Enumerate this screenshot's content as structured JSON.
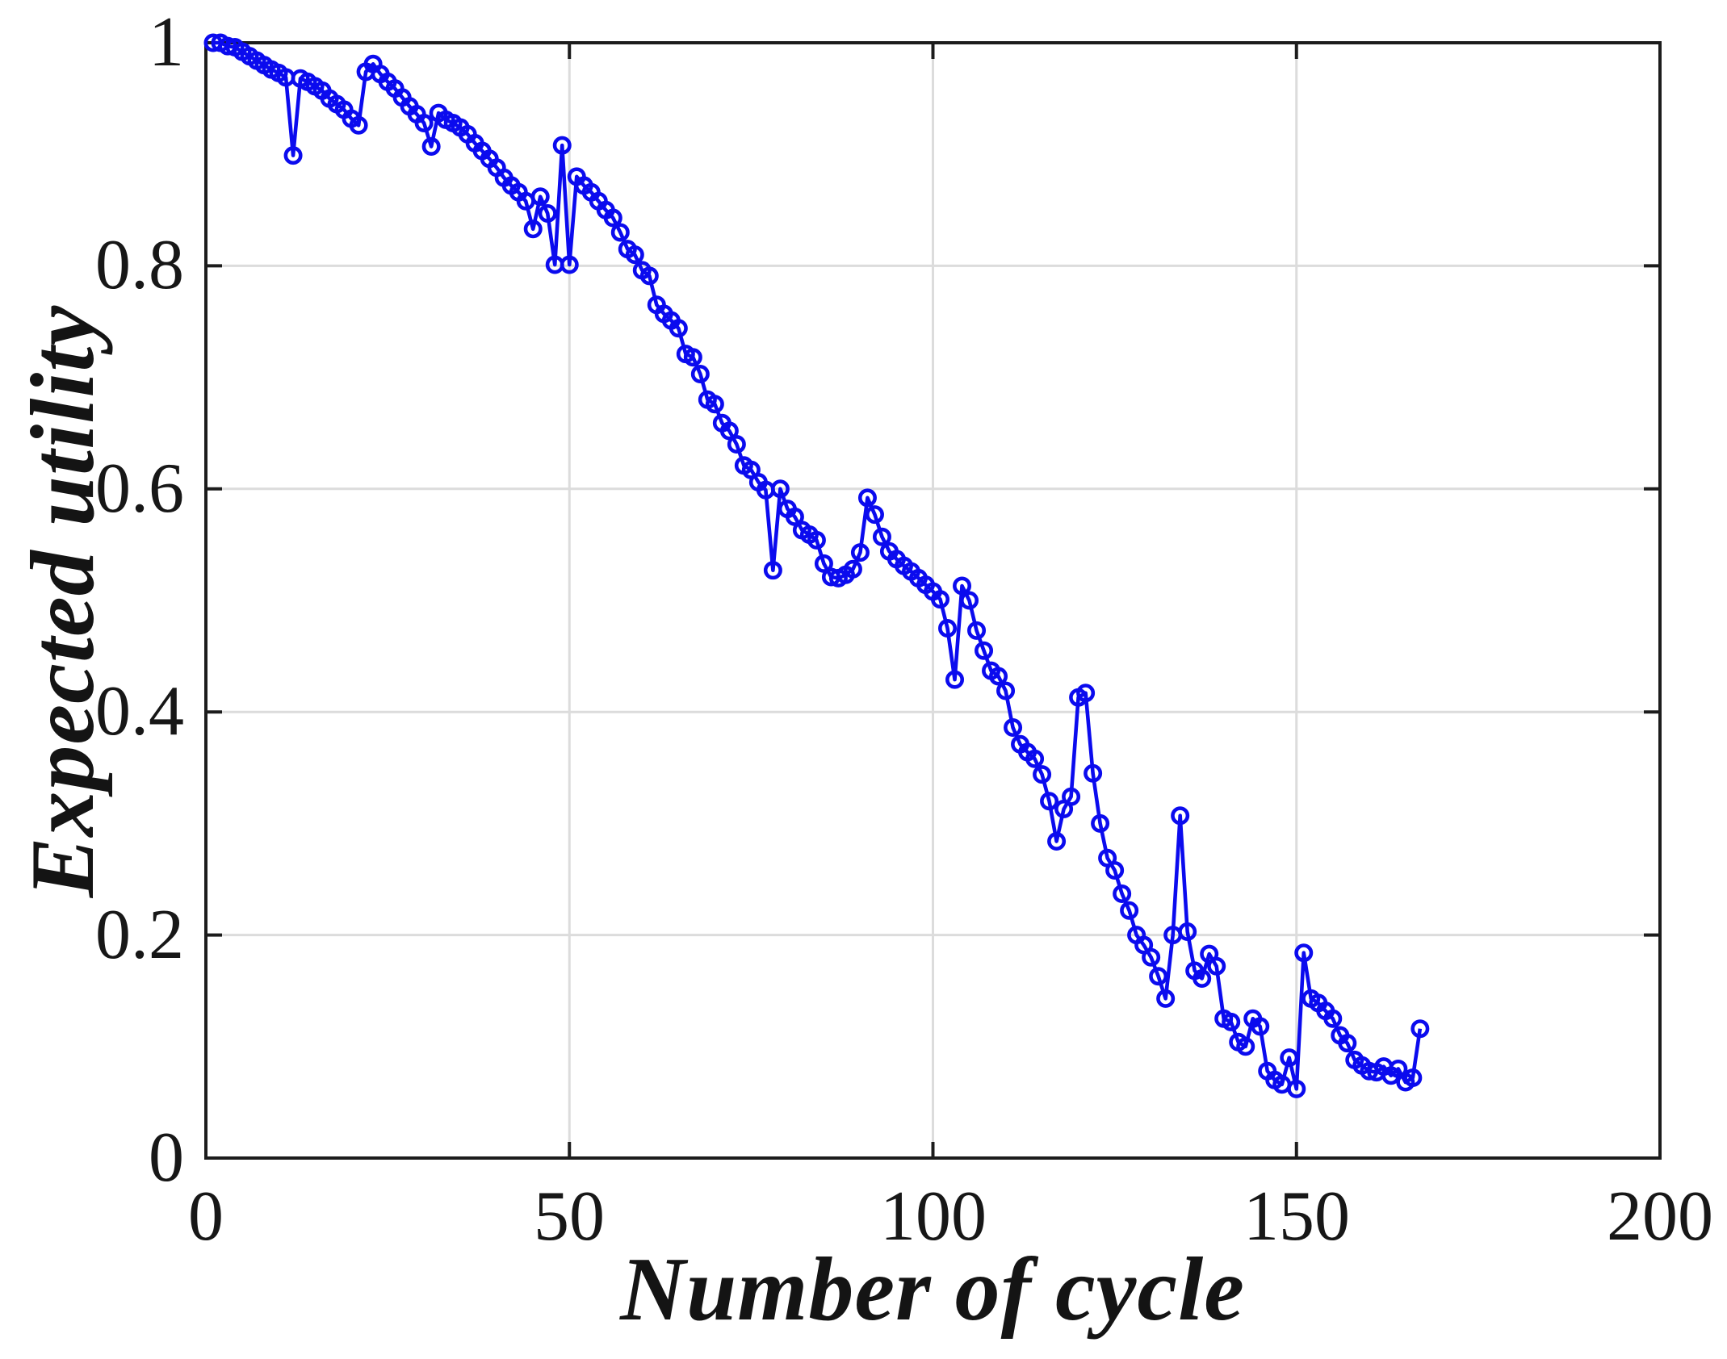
{
  "figure": {
    "background": "#ffffff",
    "axis_color": "#1c1c1c",
    "grid_color": "#dcdcdc",
    "accent_blue": "#0b0bee"
  },
  "chart_data": {
    "type": "line",
    "title": "",
    "xlabel": "Number of cycle",
    "ylabel": "Expected utility",
    "xlim": [
      0,
      200
    ],
    "ylim": [
      0,
      1
    ],
    "xticks": [
      0,
      50,
      100,
      150,
      200
    ],
    "xtick_labels": [
      "0",
      "50",
      "100",
      "150",
      "200"
    ],
    "yticks": [
      0,
      0.2,
      0.4,
      0.6,
      0.8,
      1
    ],
    "ytick_labels": [
      "0",
      "0.2",
      "0.4",
      "0.6",
      "0.8",
      "1"
    ],
    "grid": true,
    "legend_position": "none",
    "marker": "open-circle",
    "series": [
      {
        "name": "expected-utility",
        "color": "#0b0bee",
        "x_start": 1,
        "x_step": 1,
        "y": [
          1.0,
          1.0,
          0.997,
          0.996,
          0.992,
          0.988,
          0.984,
          0.98,
          0.976,
          0.973,
          0.969,
          0.899,
          0.968,
          0.965,
          0.961,
          0.957,
          0.95,
          0.945,
          0.94,
          0.932,
          0.926,
          0.974,
          0.981,
          0.972,
          0.965,
          0.959,
          0.951,
          0.943,
          0.936,
          0.928,
          0.907,
          0.937,
          0.931,
          0.928,
          0.924,
          0.918,
          0.91,
          0.903,
          0.896,
          0.888,
          0.879,
          0.872,
          0.866,
          0.858,
          0.833,
          0.862,
          0.847,
          0.801,
          0.908,
          0.801,
          0.88,
          0.872,
          0.866,
          0.858,
          0.85,
          0.843,
          0.83,
          0.815,
          0.81,
          0.796,
          0.791,
          0.765,
          0.757,
          0.751,
          0.744,
          0.721,
          0.718,
          0.703,
          0.68,
          0.676,
          0.659,
          0.652,
          0.64,
          0.621,
          0.617,
          0.606,
          0.599,
          0.527,
          0.6,
          0.582,
          0.575,
          0.563,
          0.559,
          0.554,
          0.533,
          0.521,
          0.52,
          0.523,
          0.528,
          0.543,
          0.592,
          0.577,
          0.557,
          0.544,
          0.537,
          0.531,
          0.526,
          0.52,
          0.514,
          0.508,
          0.501,
          0.475,
          0.429,
          0.513,
          0.5,
          0.473,
          0.455,
          0.437,
          0.432,
          0.419,
          0.386,
          0.371,
          0.364,
          0.358,
          0.344,
          0.32,
          0.284,
          0.313,
          0.324,
          0.413,
          0.417,
          0.345,
          0.3,
          0.269,
          0.258,
          0.237,
          0.222,
          0.2,
          0.191,
          0.18,
          0.163,
          0.143,
          0.2,
          0.307,
          0.203,
          0.168,
          0.161,
          0.183,
          0.172,
          0.125,
          0.122,
          0.104,
          0.1,
          0.125,
          0.118,
          0.078,
          0.07,
          0.066,
          0.09,
          0.062,
          0.184,
          0.143,
          0.139,
          0.132,
          0.125,
          0.11,
          0.103,
          0.088,
          0.083,
          0.078,
          0.077,
          0.082,
          0.074,
          0.08,
          0.068,
          0.072,
          0.116
        ]
      }
    ]
  }
}
